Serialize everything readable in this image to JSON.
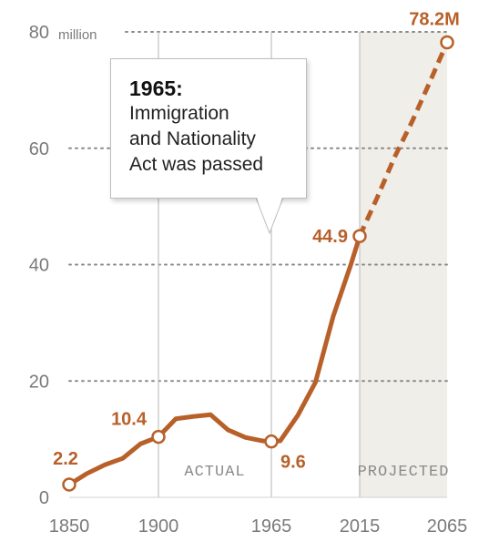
{
  "chart_data": {
    "type": "line",
    "unit_label": "million",
    "y_ticks": [
      "0",
      "20",
      "40",
      "60",
      "80"
    ],
    "x_ticks": [
      "1850",
      "1900",
      "1965",
      "2015",
      "2065"
    ],
    "ylim": [
      0,
      80
    ],
    "xlim": [
      1850,
      2065
    ],
    "grid": "dotted horizontal",
    "series": [
      {
        "actual": {
          "x": [
            1850,
            1860,
            1870,
            1880,
            1890,
            1900,
            1910,
            1920,
            1930,
            1940,
            1950,
            1960,
            1965,
            1970,
            1980,
            1990,
            2000,
            2010,
            2015
          ],
          "y": [
            2.2,
            4.1,
            5.6,
            6.7,
            9.2,
            10.4,
            13.5,
            13.9,
            14.2,
            11.6,
            10.3,
            9.7,
            9.6,
            9.7,
            14.1,
            19.8,
            31.1,
            40.0,
            44.9
          ]
        },
        "projected": {
          "x": [
            2015,
            2025,
            2035,
            2045,
            2055,
            2065
          ],
          "y": [
            44.9,
            51.5,
            58.5,
            64.6,
            71.3,
            78.2
          ]
        }
      }
    ],
    "data_labels": [
      {
        "x": 1850,
        "y": 2.2,
        "text": "2.2"
      },
      {
        "x": 1900,
        "y": 10.4,
        "text": "10.4"
      },
      {
        "x": 1965,
        "y": 9.6,
        "text": "9.6"
      },
      {
        "x": 2015,
        "y": 44.9,
        "text": "44.9"
      },
      {
        "x": 2065,
        "y": 78.2,
        "text": "78.2M"
      }
    ],
    "regions": [
      {
        "label": "ACTUAL",
        "from": 1900,
        "to": 1965
      },
      {
        "label": "PROJECTED",
        "from": 2015,
        "to": 2065
      }
    ],
    "vertical_reference_lines": [
      1900,
      1965,
      2015
    ],
    "annotation": {
      "title": "1965:",
      "lines": [
        "Immigration",
        "and Nationality",
        "Act was passed"
      ]
    },
    "colors": {
      "line": "#b8602a",
      "projected_band": "#efeee8",
      "grid": "#8a8a8a",
      "reference_line": "#c6c6c6"
    }
  }
}
